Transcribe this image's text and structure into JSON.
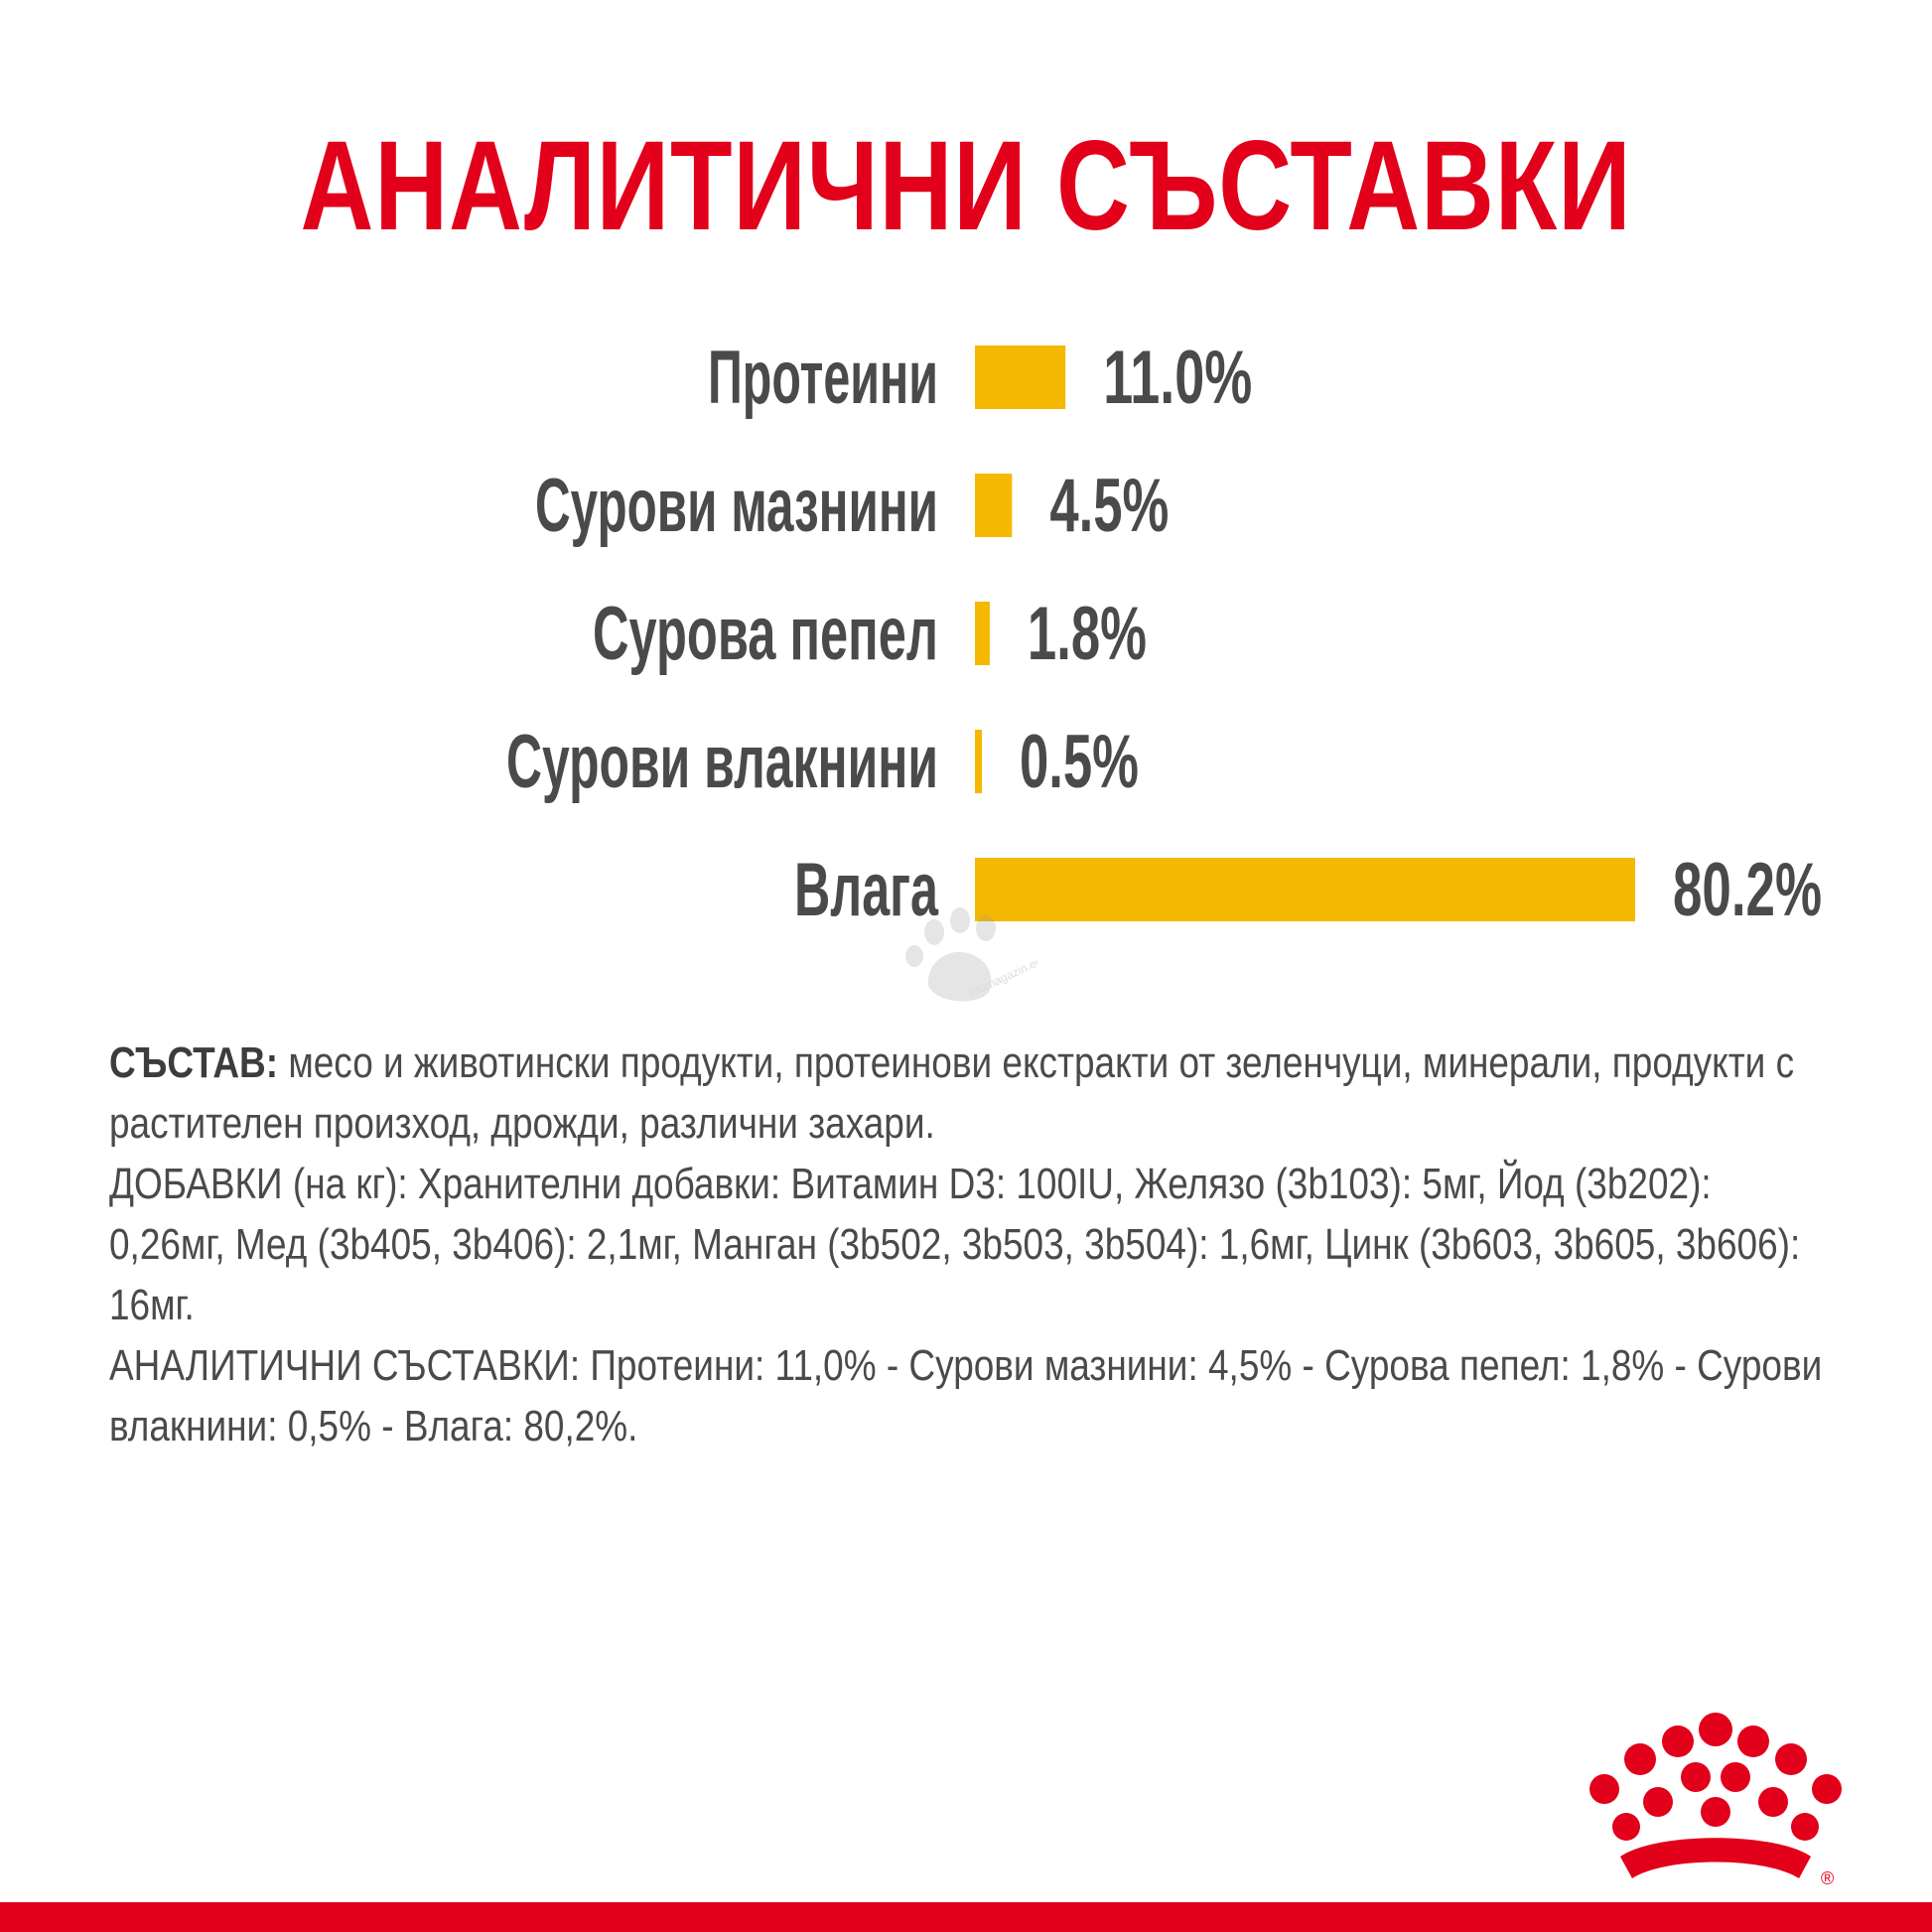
{
  "title": "АНАЛИТИЧНИ СЪСТАВКИ",
  "chart_data": {
    "type": "bar",
    "orientation": "horizontal",
    "categories": [
      "Протеини",
      "Сурови мазнини",
      "Сурова пепел",
      "Сурови влакнини",
      "Влага"
    ],
    "values": [
      11.0,
      4.5,
      1.8,
      0.5,
      80.2
    ],
    "value_labels": [
      "11.0%",
      "4.5%",
      "1.8%",
      "0.5%",
      "80.2%"
    ],
    "unit": "%",
    "bar_color": "#f5b800",
    "label_color": "#4a4a4a"
  },
  "composition": {
    "label": "СЪСТАВ:",
    "text": " месо и животински продукти, протеинови екстракти от зеленчуци, минерали, продукти с растителен произход, дрожди, различни захари.",
    "additives": "ДОБАВКИ (на кг): Хранителни добавки: Витамин D3: 100IU, Желязо (3b103): 5мг, Йод (3b202): 0,26мг, Мед (3b405, 3b406): 2,1мг, Манган (3b502, 3b503, 3b504): 1,6мг, Цинк (3b603, 3b605, 3b606): 16мг.",
    "analytical": "АНАЛИТИЧНИ СЪСТАВКИ: Протеини: 11,0% - Сурови мазнини: 4,5% - Сурова пепел: 1,8% - Сурови влакнини: 0,5% - Влага: 80,2%."
  },
  "watermark": {
    "text": "zoomagazin.eu",
    "icon": "paw-icon"
  },
  "brand": {
    "logo": "crown-logo",
    "registered": "®",
    "color": "#e2001a"
  }
}
